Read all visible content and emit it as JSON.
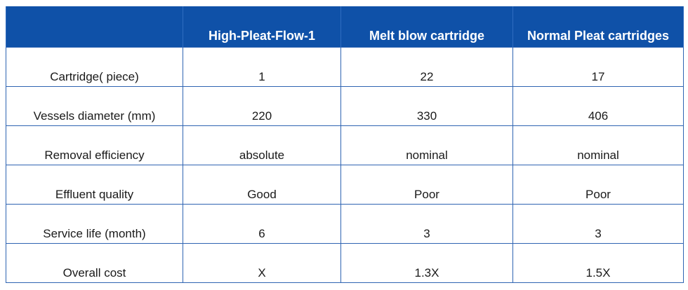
{
  "table": {
    "headers": [
      "",
      "High-Pleat-Flow-1",
      "Melt blow cartridge",
      "Normal Pleat cartridges"
    ],
    "rows": [
      [
        "Cartridge( piece)",
        "1",
        "22",
        "17"
      ],
      [
        "Vessels diameter (mm)",
        "220",
        "330",
        "406"
      ],
      [
        "Removal efficiency",
        "absolute",
        "nominal",
        "nominal"
      ],
      [
        "Effluent quality",
        "Good",
        "Poor",
        "Poor"
      ],
      [
        "Service life (month)",
        "6",
        "3",
        "3"
      ],
      [
        "Overall cost",
        "X",
        "1.3X",
        "1.5X"
      ]
    ]
  },
  "colors": {
    "header_bg": "#0f51a8",
    "header_text": "#ffffff",
    "grid_line": "#2f64b2"
  }
}
